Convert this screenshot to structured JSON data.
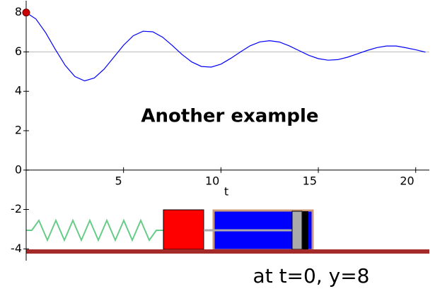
{
  "chart_data": {
    "type": "line",
    "x": [
      0,
      0.5,
      1,
      1.5,
      2,
      2.5,
      3,
      3.5,
      4,
      4.5,
      5,
      5.5,
      6,
      6.5,
      7,
      7.5,
      8,
      8.5,
      9,
      9.5,
      10,
      10.5,
      11,
      11.5,
      12,
      12.5,
      13,
      13.5,
      14,
      14.5,
      15,
      15.5,
      16,
      16.5,
      17,
      17.5,
      18,
      18.5,
      19,
      19.5,
      20,
      20.5
    ],
    "values": [
      8.0,
      7.67,
      6.98,
      6.12,
      5.32,
      4.75,
      4.53,
      4.68,
      5.12,
      5.73,
      6.34,
      6.82,
      7.05,
      7.02,
      6.75,
      6.33,
      5.87,
      5.49,
      5.26,
      5.23,
      5.38,
      5.67,
      6.0,
      6.31,
      6.51,
      6.57,
      6.5,
      6.31,
      6.07,
      5.83,
      5.66,
      5.58,
      5.61,
      5.73,
      5.9,
      6.07,
      6.22,
      6.3,
      6.3,
      6.21,
      6.11,
      5.99
    ],
    "color": "#0000ff",
    "xlabel": "t",
    "xlim": [
      0,
      20.7
    ],
    "ylim": [
      -4.6,
      8.6
    ],
    "xticks": [
      5,
      10,
      15,
      20
    ],
    "yticks": [
      -4,
      -2,
      0,
      2,
      4,
      6,
      8
    ],
    "hline": 6,
    "highlight": {
      "x": 0,
      "y": 8,
      "color": "#cc0000"
    },
    "annotation": "Another example",
    "caption": "at t=0, y=8",
    "grid": false
  }
}
